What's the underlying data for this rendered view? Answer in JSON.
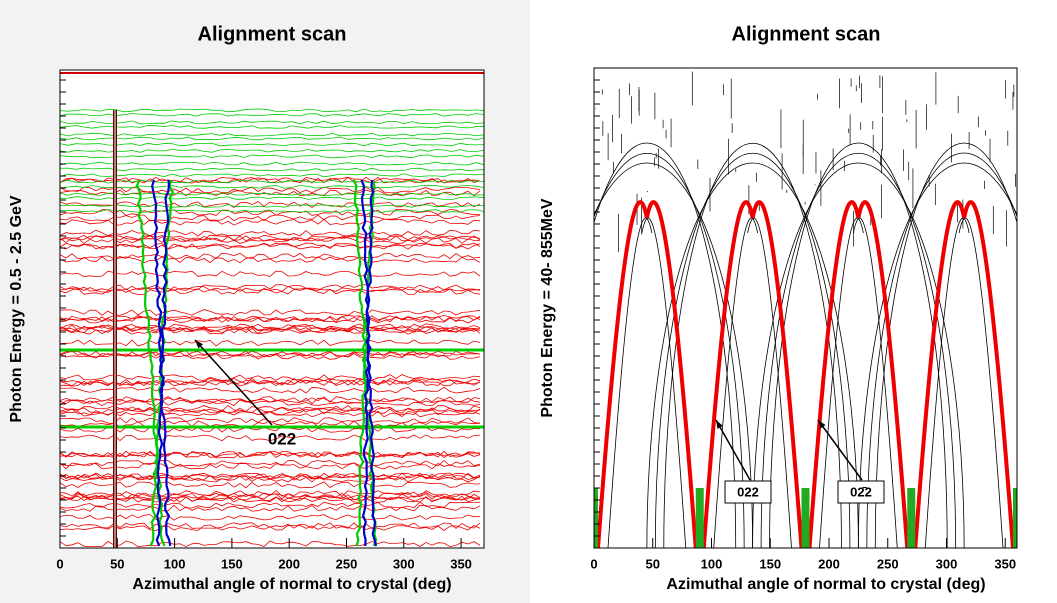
{
  "chart_data": [
    {
      "type": "contour",
      "title": "Alignment scan",
      "x_label": "Azimuthal angle of normal to crystal (deg)",
      "y_label": "Photon Energy = 0.5 - 2.5 GeV",
      "xlim": [
        0,
        370
      ],
      "xticks": [
        0,
        50,
        100,
        150,
        200,
        250,
        300,
        350
      ],
      "annotations": [
        "022"
      ]
    },
    {
      "type": "contour",
      "title": "Alignment scan",
      "x_label": "Azimuthal angle of normal to crystal (deg)",
      "y_label": "Photon Energy = 40- 855MeV",
      "xlim": [
        0,
        360
      ],
      "xticks": [
        0,
        50,
        100,
        150,
        200,
        250,
        300,
        350
      ],
      "annotations": [
        "022",
        "02̄2"
      ]
    }
  ]
}
